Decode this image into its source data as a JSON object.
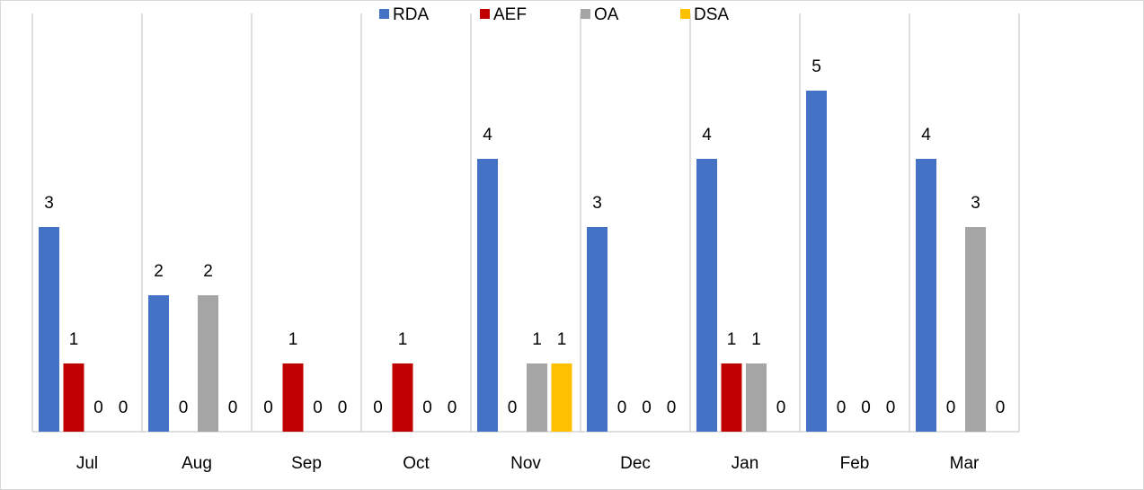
{
  "chart_data": {
    "type": "bar",
    "categories": [
      "Jul",
      "Aug",
      "Sep",
      "Oct",
      "Nov",
      "Dec",
      "Jan",
      "Feb",
      "Mar"
    ],
    "series": [
      {
        "name": "RDA",
        "color": "#4472c4",
        "values": [
          3,
          2,
          0,
          0,
          4,
          3,
          4,
          5,
          4
        ]
      },
      {
        "name": "AEF",
        "color": "#c00000",
        "values": [
          1,
          0,
          1,
          1,
          0,
          0,
          1,
          0,
          0
        ]
      },
      {
        "name": "OA",
        "color": "#a5a5a5",
        "values": [
          0,
          2,
          0,
          0,
          1,
          0,
          1,
          0,
          3
        ]
      },
      {
        "name": "DSA",
        "color": "#ffc000",
        "values": [
          0,
          0,
          0,
          0,
          1,
          0,
          0,
          0,
          0
        ]
      }
    ],
    "ylim": [
      0,
      6
    ],
    "legend": "top"
  }
}
